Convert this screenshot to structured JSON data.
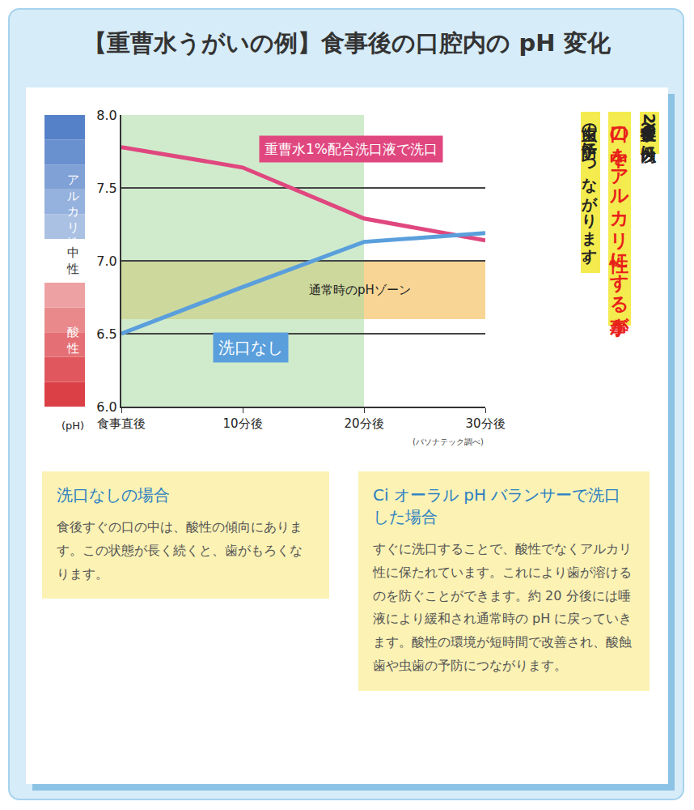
{
  "title": "【重曹水うがいの例】食事後の口腔内の pH 変化",
  "chart_data": {
    "type": "line",
    "categories": [
      "食事直後",
      "10分後",
      "20分後",
      "30分後"
    ],
    "series": [
      {
        "name": "重曹水1%配合洗口液で洗口",
        "color": "#e0477f",
        "values": [
          7.78,
          7.64,
          7.29,
          7.14
        ]
      },
      {
        "name": "洗口なし",
        "color": "#5a9fdc",
        "values": [
          6.5,
          6.82,
          7.13,
          7.19
        ]
      }
    ],
    "ylim": [
      6,
      8
    ],
    "yticks": [
      {
        "value": 6,
        "label": "6.0"
      },
      {
        "value": 6.5,
        "label": "6.5"
      },
      {
        "value": 7,
        "label": "7.0"
      },
      {
        "value": 7.5,
        "label": "7.5"
      },
      {
        "value": 8,
        "label": "8.0"
      }
    ],
    "ylabel": "(pH)",
    "grid": true,
    "shaded_regions": [
      {
        "y": [
          6.6,
          7.0
        ],
        "color": "#f3b94f",
        "label": "通常時のpHゾーン"
      },
      {
        "x": [
          "食事直後",
          "20分後"
        ],
        "color": "#a9dba3"
      }
    ],
    "ph_scale": [
      {
        "label": "アルカリ性",
        "y": [
          7.15,
          8.0
        ],
        "color": "#4a79c4"
      },
      {
        "label": "中性",
        "y": [
          6.85,
          7.15
        ],
        "color": "#ffffff"
      },
      {
        "label": "酸性",
        "y": [
          6.0,
          6.85
        ],
        "color": "#d9343a"
      }
    ],
    "source": "(パソナテック調べ)"
  },
  "side_note": [
    {
      "text": "食事後直後〜20分以内に",
      "color": "#222222"
    },
    {
      "text": "口の中をアルカリ性にする事が",
      "color": "#e8201a",
      "emphasis": true
    },
    {
      "text": "虫歯の予防につながります。",
      "color": "#222222"
    }
  ],
  "boxes": [
    {
      "heading": "洗口なしの場合",
      "text": "食後すぐの口の中は、酸性の傾向にあります。この状態が長く続くと、歯がもろくなります。"
    },
    {
      "heading": "Ci オーラル pH バランサーで洗口した場合",
      "text": "すぐに洗口することで、酸性でなくアルカリ性に保たれています。これにより歯が溶けるのを防ぐことができます。約 20 分後には唾液により緩和され通常時の pH に戻っていきます。酸性の環境が短時間で改善され、酸蝕歯や虫歯の予防につながります。"
    }
  ]
}
